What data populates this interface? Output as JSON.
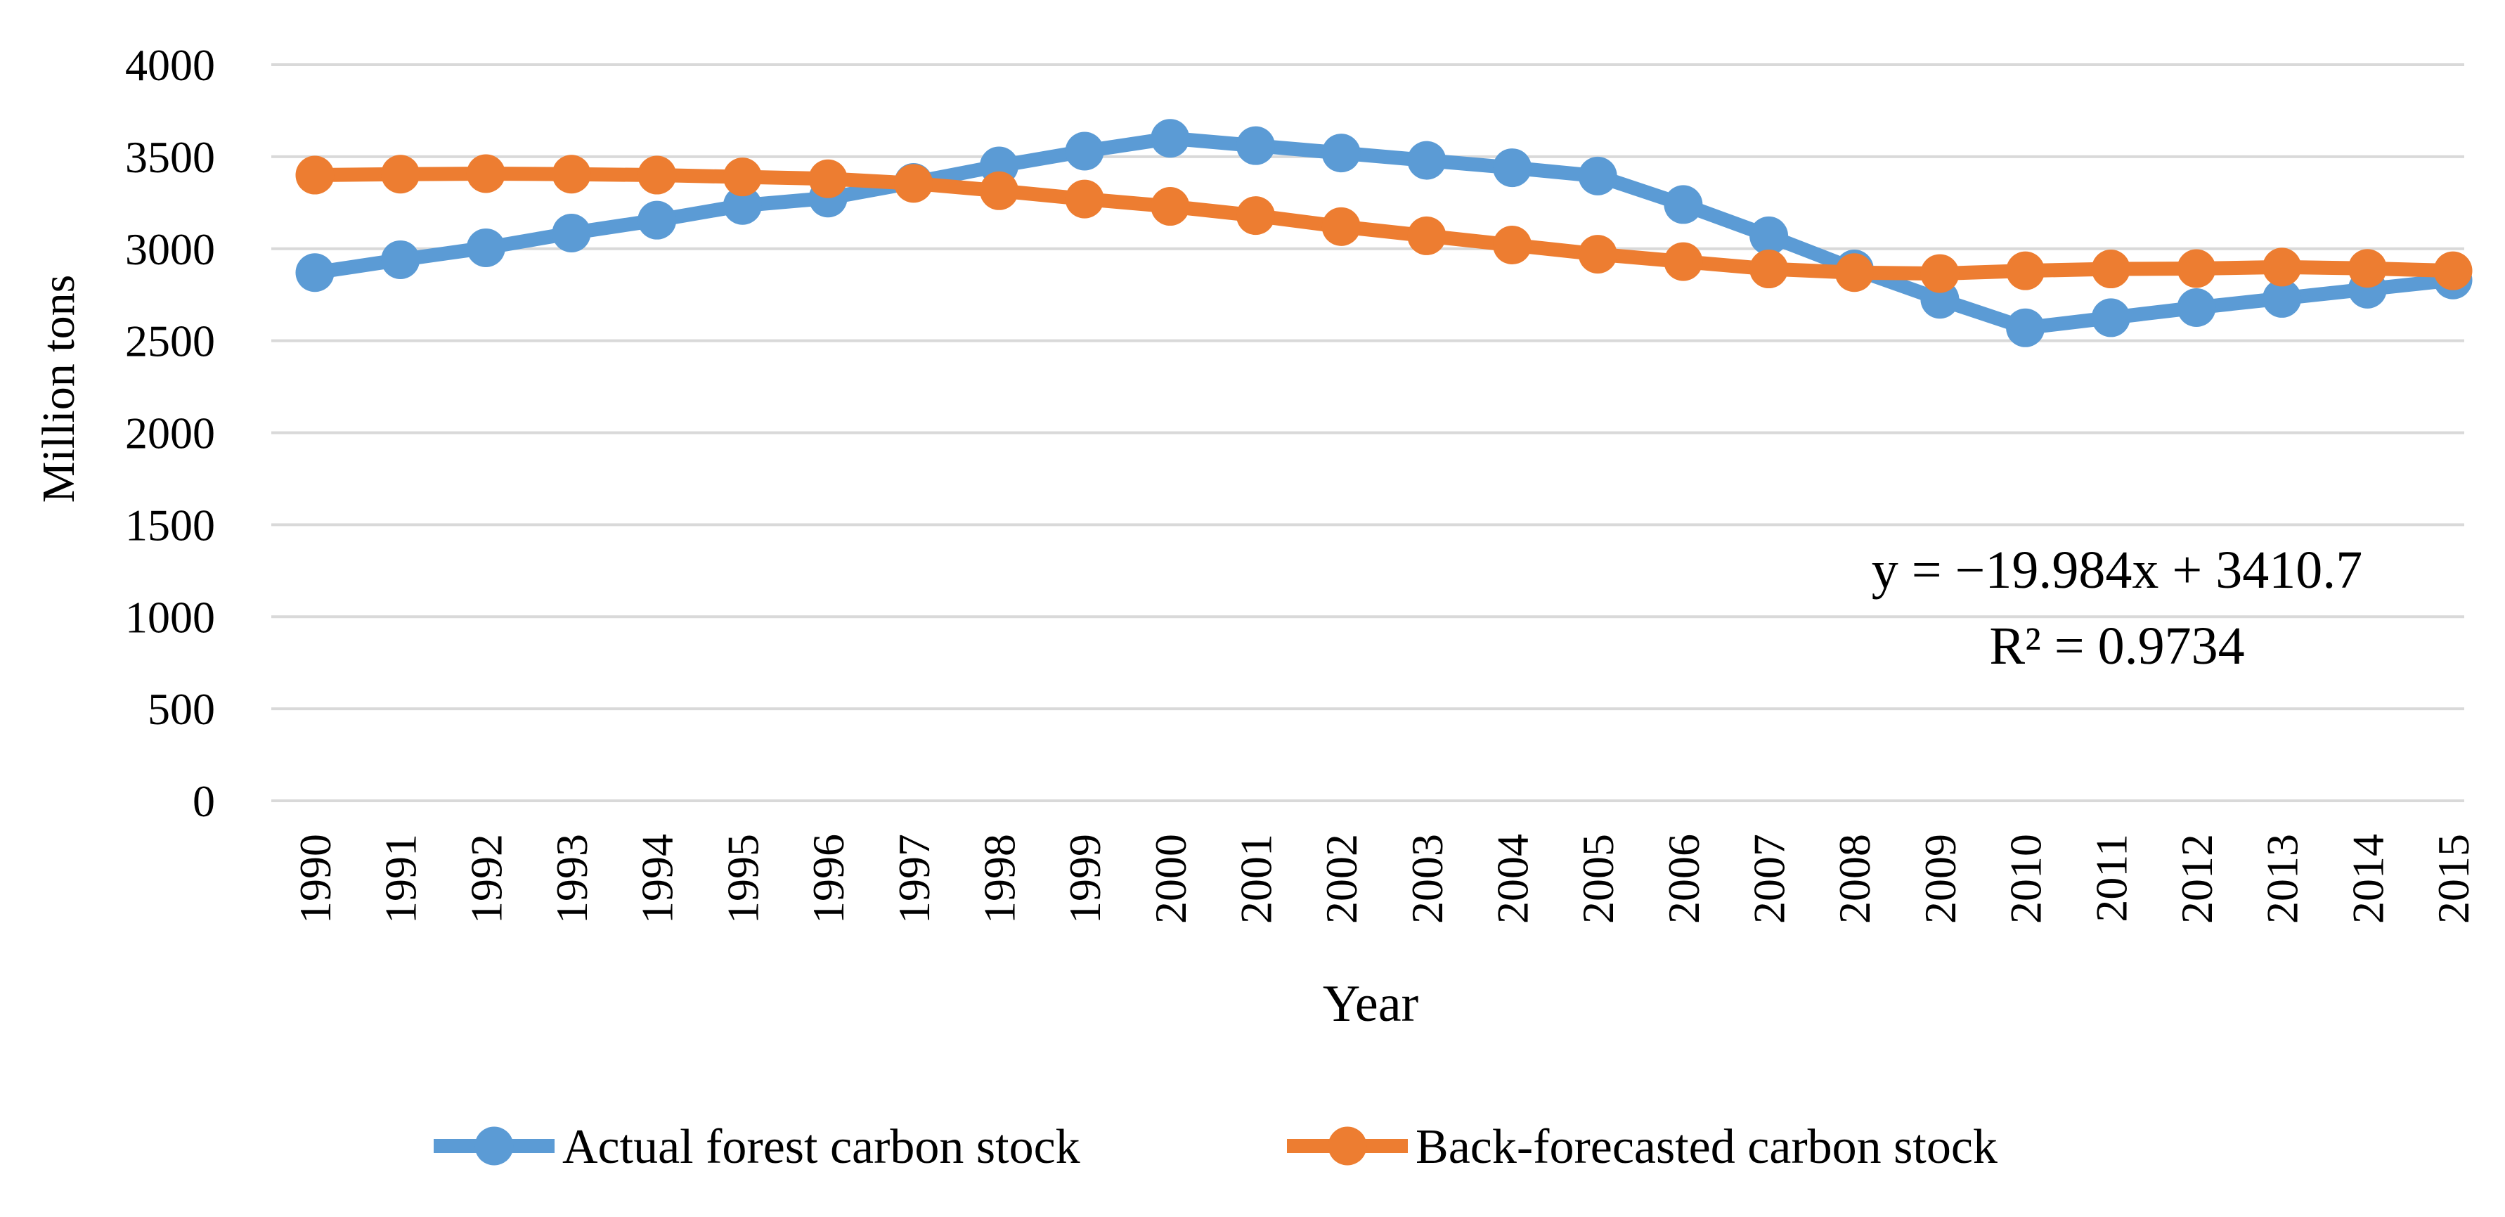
{
  "figure": {
    "background": "#FFFFFF",
    "grid_color": "#D9D9D9",
    "text_color": "#000000"
  },
  "chart_data": {
    "type": "line",
    "title": "",
    "xlabel": "Year",
    "ylabel": "Million tons",
    "x": [
      1990,
      1991,
      1992,
      1993,
      1994,
      1995,
      1996,
      1997,
      1998,
      1999,
      2000,
      2001,
      2002,
      2003,
      2004,
      2005,
      2006,
      2007,
      2008,
      2009,
      2010,
      2011,
      2012,
      2013,
      2014,
      2015
    ],
    "series": [
      {
        "name": "Actual forest carbon stock",
        "color": "#5B9BD5",
        "marker": "circle",
        "values": [
          2870,
          2940,
          3005,
          3085,
          3155,
          3235,
          3275,
          3360,
          3450,
          3530,
          3600,
          3560,
          3520,
          3480,
          3440,
          3395,
          3240,
          3070,
          2890,
          2725,
          2570,
          2625,
          2680,
          2730,
          2780,
          2830
        ]
      },
      {
        "name": "Back-forecasted carbon stock",
        "color": "#ED7D31",
        "marker": "circle",
        "values": [
          3400,
          3405,
          3408,
          3405,
          3400,
          3390,
          3380,
          3355,
          3315,
          3270,
          3230,
          3180,
          3120,
          3070,
          3020,
          2970,
          2930,
          2890,
          2870,
          2865,
          2880,
          2890,
          2892,
          2900,
          2893,
          2880
        ]
      }
    ],
    "ylim": [
      0,
      4000
    ],
    "yticks": [
      0,
      500,
      1000,
      1500,
      2000,
      2500,
      3000,
      3500,
      4000
    ],
    "grid": true,
    "legend_position": "bottom",
    "annotation": {
      "line1": "y = −19.984x + 3410.7",
      "line2": "R² = 0.9734"
    }
  }
}
